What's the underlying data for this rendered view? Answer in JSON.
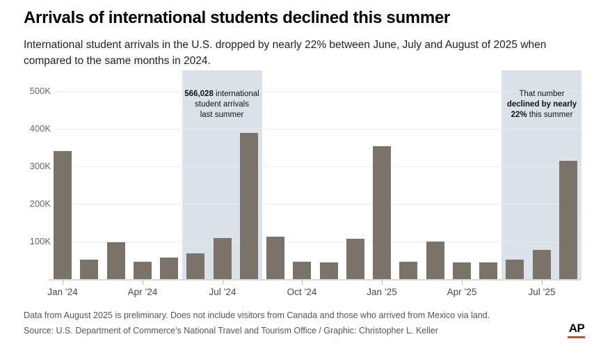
{
  "chart_data": {
    "type": "bar",
    "title": "Arrivals of international students declined this summer",
    "subtitle_lines": [
      "International student arrivals in the U.S. dropped by nearly 22% between June, July and August of 2025 when",
      "compared to the same months in 2024."
    ],
    "categories": [
      "Jan '24",
      "Feb '24",
      "Mar '24",
      "Apr '24",
      "May '24",
      "Jun '24",
      "Jul '24",
      "Aug '24",
      "Sep '24",
      "Oct '24",
      "Nov '24",
      "Dec '24",
      "Jan '25",
      "Feb '25",
      "Mar '25",
      "Apr '25",
      "May '25",
      "Jun '25",
      "Jul '25",
      "Aug '25"
    ],
    "values_thousands": [
      340,
      52,
      99,
      47,
      57,
      69,
      109,
      388,
      113,
      47,
      45,
      107,
      353,
      47,
      100,
      44,
      45,
      52,
      78,
      315
    ],
    "unit": "thousands of arrivals",
    "ylim_thousands": [
      0,
      550
    ],
    "grid": "horizontal",
    "legend": "none",
    "yticks": [
      {
        "value": 500,
        "label": "500K"
      },
      {
        "value": 400,
        "label": "400K"
      },
      {
        "value": 300,
        "label": "300K"
      },
      {
        "value": 200,
        "label": "200K"
      },
      {
        "value": 100,
        "label": "100K"
      }
    ],
    "xticks": [
      {
        "month_index": 0,
        "label": "Jan ’24"
      },
      {
        "month_index": 3,
        "label": "Apr ’24"
      },
      {
        "month_index": 6,
        "label": "Jul ’24"
      },
      {
        "month_index": 9,
        "label": "Oct ’24"
      },
      {
        "month_index": 12,
        "label": "Jan ’25"
      },
      {
        "month_index": 15,
        "label": "Apr ’25"
      },
      {
        "month_index": 18,
        "label": "Jul ’25"
      }
    ],
    "highlights": [
      {
        "name": "summer-2024",
        "from_index": 5,
        "to_index": 7
      },
      {
        "name": "summer-2025",
        "from_index": 17,
        "to_index": 19
      }
    ],
    "annotations": {
      "summer_2024": {
        "value_bold": "566,028",
        "value_rest": " international",
        "line2": "student arrivals",
        "line3": "last summer"
      },
      "summer_2025": {
        "line1": "That number",
        "line2_bold": "declined by nearly",
        "line3_bold": "22%",
        "line3_rest": " this summer"
      }
    }
  },
  "footer": {
    "note": "Data from August 2025 is preliminary. Does not include visitors from Canada and those who arrived from Mexico via land.",
    "source": "Source: U.S. Department of Commerce's National Travel and Tourism Office / Graphic: Christopher L. Keller",
    "logo_text": "AP"
  },
  "colors": {
    "bar": "#7a7369",
    "highlight": "#dce2ea",
    "grid": "#ececec",
    "axis": "#d9d9d9",
    "accent_red": "#ff322e"
  }
}
